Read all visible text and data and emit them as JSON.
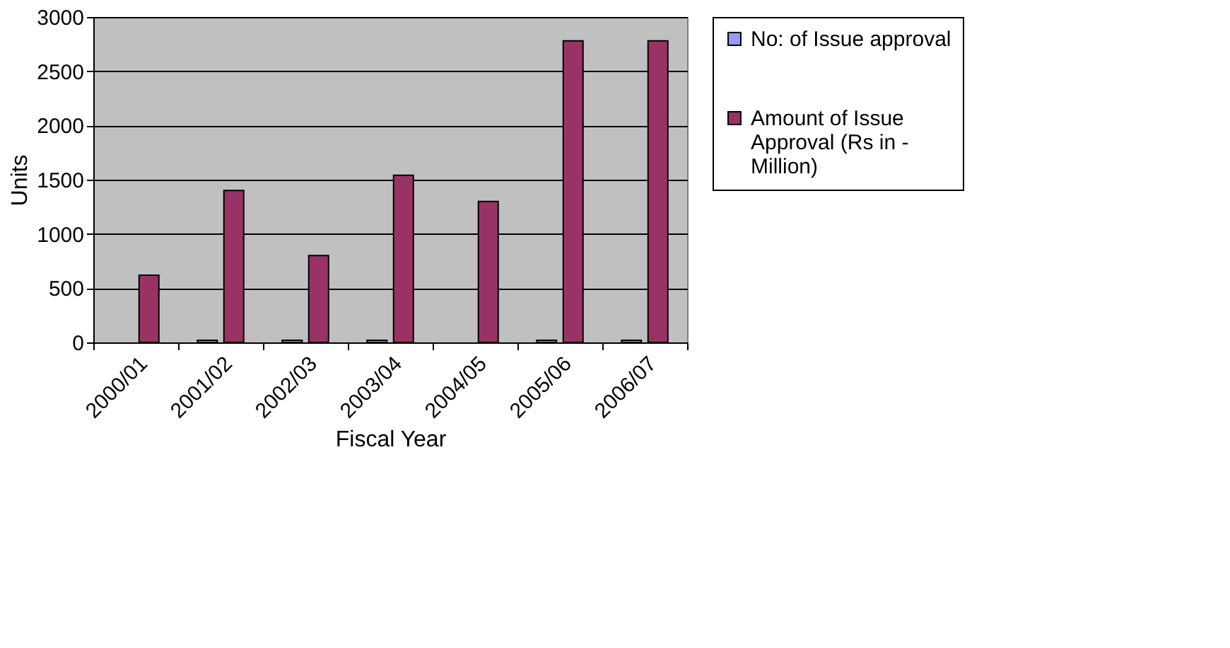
{
  "chart_data": {
    "type": "bar",
    "xlabel": "Fiscal Year",
    "ylabel": "Units",
    "categories": [
      "2000/01",
      "2001/02",
      "2002/03",
      "2003/04",
      "2004/05",
      "2005/06",
      "2006/07"
    ],
    "series": [
      {
        "name": "No: of Issue approval",
        "color": "#9999ff",
        "values": [
          null,
          20,
          20,
          20,
          null,
          20,
          20
        ]
      },
      {
        "name": "Amount of Issue Approval (Rs in - Million)",
        "color": "#993366",
        "values": [
          620,
          1400,
          800,
          1540,
          1300,
          2780,
          2780
        ]
      }
    ],
    "ylim": [
      0,
      3000
    ],
    "yticks": [
      0,
      500,
      1000,
      1500,
      2000,
      2500,
      3000
    ],
    "grid": "y",
    "legend": "right"
  }
}
